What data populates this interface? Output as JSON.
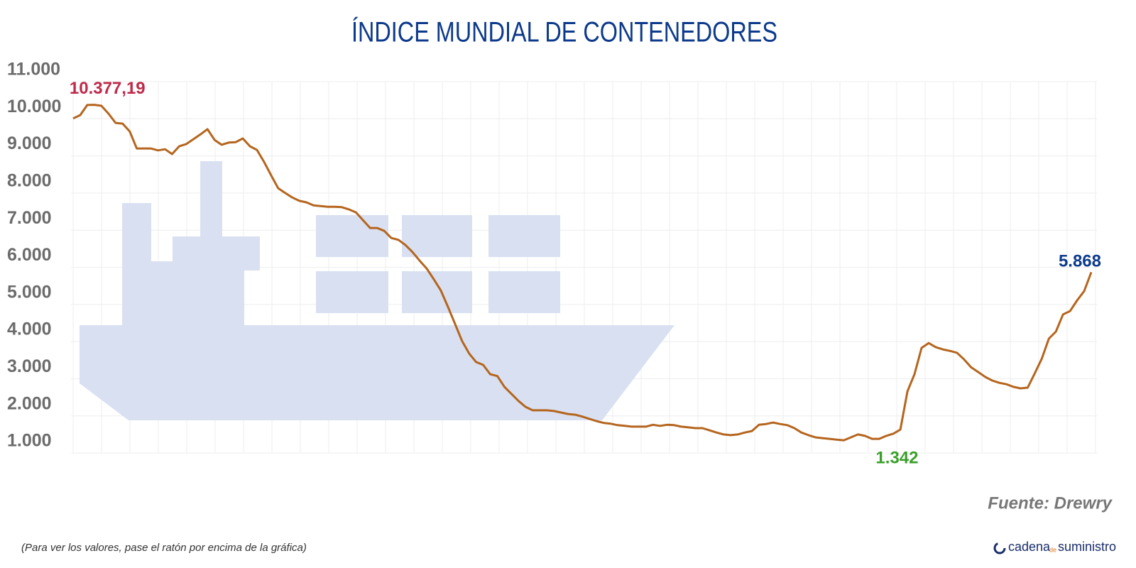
{
  "chart_data": {
    "type": "line",
    "title": "ÍNDICE MUNDIAL DE CONTENEDORES",
    "values": [
      10010,
      10100,
      10370,
      10377.19,
      10350,
      10140,
      9890,
      9870,
      9660,
      9200,
      9200,
      9200,
      9150,
      9180,
      9050,
      9260,
      9320,
      9450,
      9580,
      9720,
      9430,
      9300,
      9360,
      9370,
      9470,
      9260,
      9160,
      8840,
      8480,
      8130,
      8000,
      7880,
      7790,
      7750,
      7670,
      7650,
      7630,
      7630,
      7620,
      7560,
      7480,
      7270,
      7060,
      7060,
      6980,
      6790,
      6740,
      6600,
      6410,
      6180,
      5970,
      5680,
      5380,
      4940,
      4480,
      4020,
      3680,
      3450,
      3370,
      3120,
      3070,
      2780,
      2590,
      2400,
      2240,
      2150,
      2150,
      2150,
      2130,
      2090,
      2050,
      2030,
      1980,
      1920,
      1860,
      1810,
      1790,
      1750,
      1730,
      1710,
      1710,
      1710,
      1760,
      1730,
      1760,
      1750,
      1710,
      1690,
      1670,
      1670,
      1610,
      1550,
      1500,
      1480,
      1500,
      1550,
      1590,
      1760,
      1780,
      1820,
      1780,
      1750,
      1670,
      1550,
      1480,
      1420,
      1400,
      1380,
      1360,
      1342,
      1420,
      1500,
      1460,
      1380,
      1380,
      1460,
      1520,
      1630,
      2660,
      3120,
      3830,
      3960,
      3850,
      3790,
      3750,
      3700,
      3520,
      3310,
      3180,
      3050,
      2950,
      2890,
      2850,
      2780,
      2740,
      2760,
      3140,
      3540,
      4080,
      4270,
      4730,
      4820,
      5110,
      5360,
      5868
    ],
    "value_labels": [
      null,
      null,
      null,
      "10.377,19",
      null,
      null,
      null,
      null,
      null,
      null,
      null,
      null,
      null,
      null,
      null,
      null,
      null,
      null,
      null,
      null,
      null,
      null,
      null,
      null,
      null,
      null,
      null,
      null,
      null,
      null,
      null,
      null,
      null,
      null,
      null,
      null,
      null,
      null,
      null,
      null,
      null,
      null,
      null,
      null,
      null,
      null,
      null,
      null,
      null,
      null,
      null,
      null,
      null,
      null,
      null,
      null,
      null,
      null,
      null,
      null,
      null,
      null,
      null,
      null,
      null,
      null,
      null,
      null,
      null,
      null,
      null,
      null,
      null,
      null,
      null,
      null,
      null,
      null,
      null,
      null,
      null,
      null,
      null,
      null,
      null,
      null,
      null,
      null,
      null,
      null,
      null,
      null,
      null,
      null,
      null,
      null,
      null,
      null,
      null,
      null,
      null,
      null,
      null,
      null,
      null,
      null,
      null,
      null,
      null,
      "1.342",
      null,
      null,
      null,
      null,
      null,
      null,
      null,
      null,
      null,
      null,
      null,
      null,
      null,
      null,
      null,
      null,
      null,
      null,
      null,
      null,
      null,
      null,
      null,
      null,
      null,
      null,
      null,
      null,
      null,
      null,
      null,
      null,
      null,
      null,
      "5.868"
    ],
    "color": "#b5651d",
    "label_colors": {
      "max": "#c0294a",
      "min": "#3aa02a",
      "last": "#0d3a8c"
    },
    "ylim": [
      1000,
      11000
    ],
    "yticks": [
      {
        "value": 1000,
        "label": "1.000"
      },
      {
        "value": 2000,
        "label": "2.000"
      },
      {
        "value": 3000,
        "label": "3.000"
      },
      {
        "value": 4000,
        "label": "4.000"
      },
      {
        "value": 5000,
        "label": "5.000"
      },
      {
        "value": 6000,
        "label": "6.000"
      },
      {
        "value": 7000,
        "label": "7.000"
      },
      {
        "value": 8000,
        "label": "8.000"
      },
      {
        "value": 9000,
        "label": "9.000"
      },
      {
        "value": 10000,
        "label": "10.000"
      },
      {
        "value": 11000,
        "label": "11.000"
      }
    ],
    "grid": true,
    "source": "Fuente: Drewry",
    "note": "(Para ver los valores, pase el ratón por encima de la gráfica)",
    "logo": [
      "cadena",
      "de",
      "suministro"
    ]
  }
}
